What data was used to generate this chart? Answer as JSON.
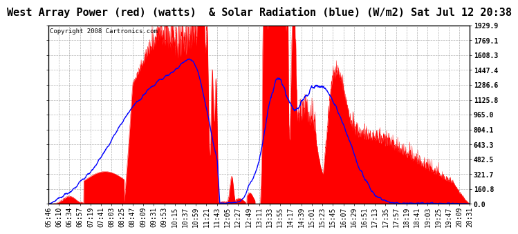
{
  "title": "West Array Power (red) (watts)  & Solar Radiation (blue) (W/m2) Sat Jul 12 20:38",
  "copyright": "Copyright 2008 Cartronics.com",
  "yticks": [
    0.0,
    160.8,
    321.7,
    482.5,
    643.3,
    804.1,
    965.0,
    1125.8,
    1286.6,
    1447.4,
    1608.3,
    1769.1,
    1929.9
  ],
  "ymax": 1929.9,
  "ymin": 0.0,
  "x_labels": [
    "05:46",
    "06:10",
    "06:34",
    "06:57",
    "07:19",
    "07:41",
    "08:03",
    "08:25",
    "08:47",
    "09:09",
    "09:31",
    "09:53",
    "10:15",
    "10:37",
    "10:59",
    "11:21",
    "11:43",
    "12:05",
    "12:27",
    "12:49",
    "13:11",
    "13:33",
    "13:55",
    "14:17",
    "14:39",
    "15:01",
    "15:23",
    "15:45",
    "16:07",
    "16:29",
    "16:51",
    "17:13",
    "17:35",
    "17:57",
    "18:19",
    "18:41",
    "19:03",
    "19:25",
    "19:47",
    "20:09",
    "20:31"
  ],
  "bg": "#ffffff",
  "grid_color": "#aaaaaa",
  "red": "#ff0000",
  "blue": "#0000ff",
  "title_fs": 11,
  "tick_fs": 7,
  "copy_fs": 6.5
}
